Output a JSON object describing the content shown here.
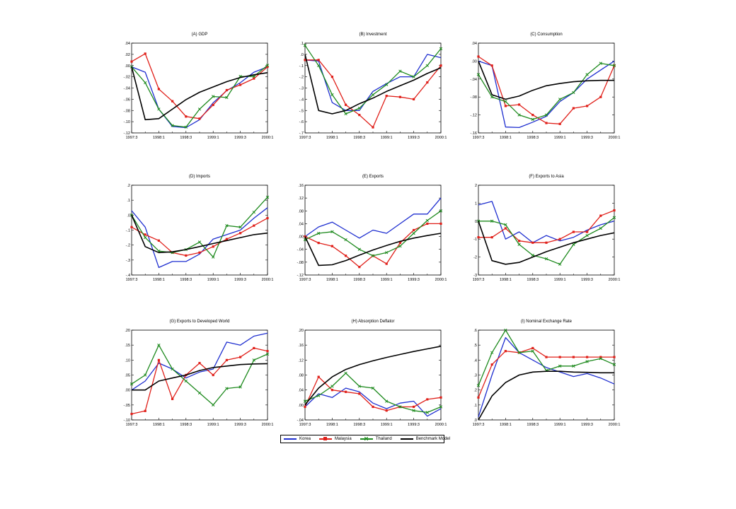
{
  "legend": [
    {
      "label": "Korea",
      "color": "#1f2fd0",
      "marker": "none"
    },
    {
      "label": "Malaysia",
      "color": "#e0201a",
      "marker": "square"
    },
    {
      "label": "Thailand",
      "color": "#1e8a1e",
      "marker": "x"
    },
    {
      "label": "Benchmark Model",
      "color": "#000000",
      "marker": "none"
    }
  ],
  "chart_data": [
    {
      "type": "line",
      "title": "(A) GDP",
      "x_ticks": [
        "1997:3",
        "1998:1",
        "1998:3",
        "1999:1",
        "1999:3",
        "2000:1"
      ],
      "y_ticks": [
        ".04",
        ".02",
        ".00",
        "-.02",
        "-.04",
        "-.06",
        "-.08",
        "-.10",
        "-.12"
      ],
      "ylim": [
        -0.125,
        0.045
      ],
      "series": [
        {
          "name": "Korea",
          "values": [
            0.0,
            -0.01,
            -0.08,
            -0.113,
            -0.115,
            -0.1,
            -0.068,
            -0.045,
            -0.03,
            -0.01,
            0.0
          ]
        },
        {
          "name": "Malaysia",
          "values": [
            0.01,
            0.025,
            -0.042,
            -0.065,
            -0.094,
            -0.098,
            -0.072,
            -0.044,
            -0.034,
            -0.022,
            0.0
          ]
        },
        {
          "name": "Thailand",
          "values": [
            0.0,
            -0.03,
            -0.08,
            -0.111,
            -0.114,
            -0.08,
            -0.056,
            -0.058,
            -0.018,
            -0.018,
            0.003
          ]
        },
        {
          "name": "Benchmark Model",
          "values": [
            0.0,
            -0.1,
            -0.098,
            -0.08,
            -0.062,
            -0.048,
            -0.038,
            -0.028,
            -0.02,
            -0.015,
            -0.011
          ]
        }
      ]
    },
    {
      "type": "line",
      "title": "(B) Investment",
      "x_ticks": [
        "1997:3",
        "1998:1",
        "1998:3",
        "1999:1",
        "1999:3",
        "2000:1"
      ],
      "y_ticks": [
        ".1",
        ".0",
        "-.1",
        "-.2",
        "-.3",
        "-.4",
        "-.5",
        "-.6",
        "-.7"
      ],
      "ylim": [
        -0.7,
        0.1
      ],
      "series": [
        {
          "name": "Korea",
          "values": [
            -0.05,
            -0.06,
            -0.43,
            -0.5,
            -0.5,
            -0.33,
            -0.26,
            -0.2,
            -0.2,
            0.0,
            -0.03
          ]
        },
        {
          "name": "Malaysia",
          "values": [
            -0.05,
            -0.05,
            -0.2,
            -0.45,
            -0.54,
            -0.65,
            -0.37,
            -0.38,
            -0.4,
            -0.25,
            -0.1
          ]
        },
        {
          "name": "Thailand",
          "values": [
            0.08,
            -0.1,
            -0.36,
            -0.53,
            -0.48,
            -0.36,
            -0.27,
            -0.15,
            -0.2,
            -0.1,
            0.05
          ]
        },
        {
          "name": "Benchmark Model",
          "values": [
            0.0,
            -0.5,
            -0.53,
            -0.5,
            -0.44,
            -0.39,
            -0.33,
            -0.28,
            -0.23,
            -0.17,
            -0.12
          ]
        }
      ]
    },
    {
      "type": "line",
      "title": "(C) Consumption",
      "x_ticks": [
        "1997:3",
        "1998:1",
        "1998:3",
        "1999:1",
        "1999:3",
        "2000:1"
      ],
      "y_ticks": [
        ".04",
        ".00",
        "-.04",
        "-.08",
        "-.12",
        "-.16"
      ],
      "ylim": [
        -0.16,
        0.04
      ],
      "series": [
        {
          "name": "Korea",
          "values": [
            0.0,
            -0.01,
            -0.147,
            -0.148,
            -0.136,
            -0.123,
            -0.09,
            -0.07,
            -0.04,
            -0.02,
            0.0
          ]
        },
        {
          "name": "Malaysia",
          "values": [
            0.01,
            -0.01,
            -0.1,
            -0.097,
            -0.12,
            -0.138,
            -0.14,
            -0.105,
            -0.1,
            -0.08,
            -0.01
          ]
        },
        {
          "name": "Thailand",
          "values": [
            -0.03,
            -0.08,
            -0.09,
            -0.12,
            -0.13,
            -0.12,
            -0.085,
            -0.07,
            -0.03,
            -0.005,
            -0.01
          ]
        },
        {
          "name": "Benchmark Model",
          "values": [
            0.0,
            -0.075,
            -0.085,
            -0.078,
            -0.065,
            -0.055,
            -0.05,
            -0.046,
            -0.044,
            -0.043,
            -0.043
          ]
        }
      ]
    },
    {
      "type": "line",
      "title": "(D) Imports",
      "x_ticks": [
        "1997:3",
        "1998:1",
        "1998:3",
        "1999:1",
        "1999:3",
        "2000:1"
      ],
      "y_ticks": [
        ".2",
        ".1",
        ".0",
        "-.1",
        "-.2",
        "-.3",
        "-.4"
      ],
      "ylim": [
        -0.4,
        0.2
      ],
      "series": [
        {
          "name": "Korea",
          "values": [
            0.03,
            -0.08,
            -0.35,
            -0.31,
            -0.31,
            -0.26,
            -0.16,
            -0.13,
            -0.1,
            -0.02,
            0.05
          ]
        },
        {
          "name": "Malaysia",
          "values": [
            -0.08,
            -0.13,
            -0.17,
            -0.25,
            -0.27,
            -0.25,
            -0.21,
            -0.16,
            -0.12,
            -0.07,
            -0.02
          ]
        },
        {
          "name": "Thailand",
          "values": [
            0.0,
            -0.15,
            -0.24,
            -0.25,
            -0.23,
            -0.18,
            -0.28,
            -0.07,
            -0.08,
            0.02,
            0.12
          ]
        },
        {
          "name": "Benchmark Model",
          "values": [
            0.0,
            -0.21,
            -0.25,
            -0.245,
            -0.23,
            -0.21,
            -0.19,
            -0.17,
            -0.15,
            -0.13,
            -0.12
          ]
        }
      ]
    },
    {
      "type": "line",
      "title": "(E) Exports",
      "x_ticks": [
        "1997:3",
        "1998:1",
        "1998:3",
        "1999:1",
        "1999:3",
        "2000:1"
      ],
      "y_ticks": [
        ".16",
        ".12",
        ".08",
        ".04",
        ".00",
        "-.04",
        "-.08",
        "-.12"
      ],
      "ylim": [
        -0.12,
        0.16
      ],
      "series": [
        {
          "name": "Korea",
          "values": [
            0.0,
            0.03,
            0.045,
            0.02,
            -0.005,
            0.02,
            0.01,
            0.04,
            0.07,
            0.07,
            0.12
          ]
        },
        {
          "name": "Malaysia",
          "values": [
            0.0,
            -0.02,
            -0.03,
            -0.06,
            -0.095,
            -0.06,
            -0.085,
            -0.02,
            0.02,
            0.04,
            0.04
          ]
        },
        {
          "name": "Thailand",
          "values": [
            -0.01,
            0.01,
            0.015,
            -0.01,
            -0.04,
            -0.06,
            -0.05,
            -0.03,
            0.01,
            0.05,
            0.08
          ]
        },
        {
          "name": "Benchmark Model",
          "values": [
            0.0,
            -0.09,
            -0.088,
            -0.075,
            -0.058,
            -0.042,
            -0.028,
            -0.015,
            -0.005,
            0.003,
            0.01
          ]
        }
      ]
    },
    {
      "type": "line",
      "title": "(F) Exports to Asia",
      "x_ticks": [
        "1997:3",
        "1998:1",
        "1998:3",
        "1999:1",
        "1999:3",
        "2000:1"
      ],
      "y_ticks": [
        "2",
        "1",
        "0",
        "-1",
        "-2",
        "-3"
      ],
      "ylim": [
        -3,
        2
      ],
      "series": [
        {
          "name": "Korea",
          "values": [
            0.9,
            1.1,
            -1.0,
            -0.6,
            -1.2,
            -0.8,
            -1.1,
            -0.9,
            -0.5,
            -0.2,
            0.0
          ]
        },
        {
          "name": "Malaysia",
          "values": [
            -0.9,
            -0.9,
            -0.4,
            -1.1,
            -1.2,
            -1.2,
            -1.0,
            -0.6,
            -0.6,
            0.3,
            0.6
          ]
        },
        {
          "name": "Thailand",
          "values": [
            0.0,
            0.0,
            -0.2,
            -1.3,
            -1.9,
            -2.1,
            -2.4,
            -1.3,
            -0.8,
            -0.4,
            0.2
          ]
        },
        {
          "name": "Benchmark Model",
          "values": [
            0.0,
            -2.2,
            -2.4,
            -2.3,
            -2.0,
            -1.7,
            -1.45,
            -1.2,
            -1.0,
            -0.8,
            -0.65
          ]
        }
      ]
    },
    {
      "type": "line",
      "title": "(G) Exports to Developed World",
      "x_ticks": [
        "1997:3",
        "1998:1",
        "1998:3",
        "1999:1",
        "1999:3",
        "2000:1"
      ],
      "y_ticks": [
        ".20",
        ".15",
        ".10",
        ".05",
        ".00",
        "-.05",
        "-.10"
      ],
      "ylim": [
        -0.1,
        0.2
      ],
      "series": [
        {
          "name": "Korea",
          "values": [
            0.0,
            0.03,
            0.09,
            0.07,
            0.04,
            0.06,
            0.07,
            0.16,
            0.15,
            0.18,
            0.19
          ]
        },
        {
          "name": "Malaysia",
          "values": [
            -0.08,
            -0.07,
            0.1,
            -0.03,
            0.05,
            0.09,
            0.05,
            0.1,
            0.11,
            0.14,
            0.13
          ]
        },
        {
          "name": "Thailand",
          "values": [
            0.02,
            0.05,
            0.15,
            0.07,
            0.03,
            -0.01,
            -0.05,
            0.005,
            0.01,
            0.1,
            0.12
          ]
        },
        {
          "name": "Benchmark Model",
          "values": [
            0.0,
            0.0,
            0.03,
            0.04,
            0.05,
            0.065,
            0.075,
            0.08,
            0.085,
            0.087,
            0.088
          ]
        }
      ]
    },
    {
      "type": "line",
      "title": "(H) Absorption Deflator",
      "x_ticks": [
        "1997:3",
        "1998:1",
        "1998:3",
        "1999:1",
        "1999:3",
        "2000:1"
      ],
      "y_ticks": [
        ".20",
        ".16",
        ".12",
        ".08",
        ".04",
        ".00",
        "-.04"
      ],
      "ylim": [
        -0.04,
        0.2
      ],
      "series": [
        {
          "name": "Korea",
          "values": [
            -0.005,
            0.03,
            0.02,
            0.045,
            0.035,
            0.005,
            -0.01,
            0.005,
            0.01,
            -0.03,
            -0.01
          ]
        },
        {
          "name": "Malaysia",
          "values": [
            -0.005,
            0.075,
            0.04,
            0.035,
            0.03,
            -0.005,
            -0.015,
            -0.005,
            -0.005,
            0.015,
            0.02
          ]
        },
        {
          "name": "Thailand",
          "values": [
            0.01,
            0.025,
            0.05,
            0.085,
            0.05,
            0.045,
            0.01,
            -0.005,
            -0.015,
            -0.02,
            -0.005
          ]
        },
        {
          "name": "Benchmark Model",
          "values": [
            0.0,
            0.045,
            0.075,
            0.095,
            0.108,
            0.118,
            0.127,
            0.135,
            0.143,
            0.15,
            0.157
          ]
        }
      ]
    },
    {
      "type": "line",
      "title": "(I) Nominal Exchange Rate",
      "x_ticks": [
        "1997:3",
        "1998:1",
        "1998:3",
        "1999:1",
        "1999:3",
        "2000:1"
      ],
      "y_ticks": [
        ".6",
        ".5",
        ".4",
        ".3",
        ".2",
        ".1",
        ".0"
      ],
      "ylim": [
        0.0,
        0.6
      ],
      "series": [
        {
          "name": "Korea",
          "values": [
            0.02,
            0.3,
            0.55,
            0.45,
            0.4,
            0.35,
            0.32,
            0.29,
            0.31,
            0.28,
            0.24
          ]
        },
        {
          "name": "Malaysia",
          "values": [
            0.15,
            0.37,
            0.46,
            0.45,
            0.48,
            0.42,
            0.42,
            0.42,
            0.42,
            0.42,
            0.42
          ]
        },
        {
          "name": "Thailand",
          "values": [
            0.23,
            0.45,
            0.6,
            0.45,
            0.46,
            0.33,
            0.36,
            0.36,
            0.39,
            0.41,
            0.37
          ]
        },
        {
          "name": "Benchmark Model",
          "values": [
            0.0,
            0.16,
            0.25,
            0.3,
            0.32,
            0.325,
            0.325,
            0.32,
            0.318,
            0.315,
            0.315
          ]
        }
      ]
    }
  ]
}
